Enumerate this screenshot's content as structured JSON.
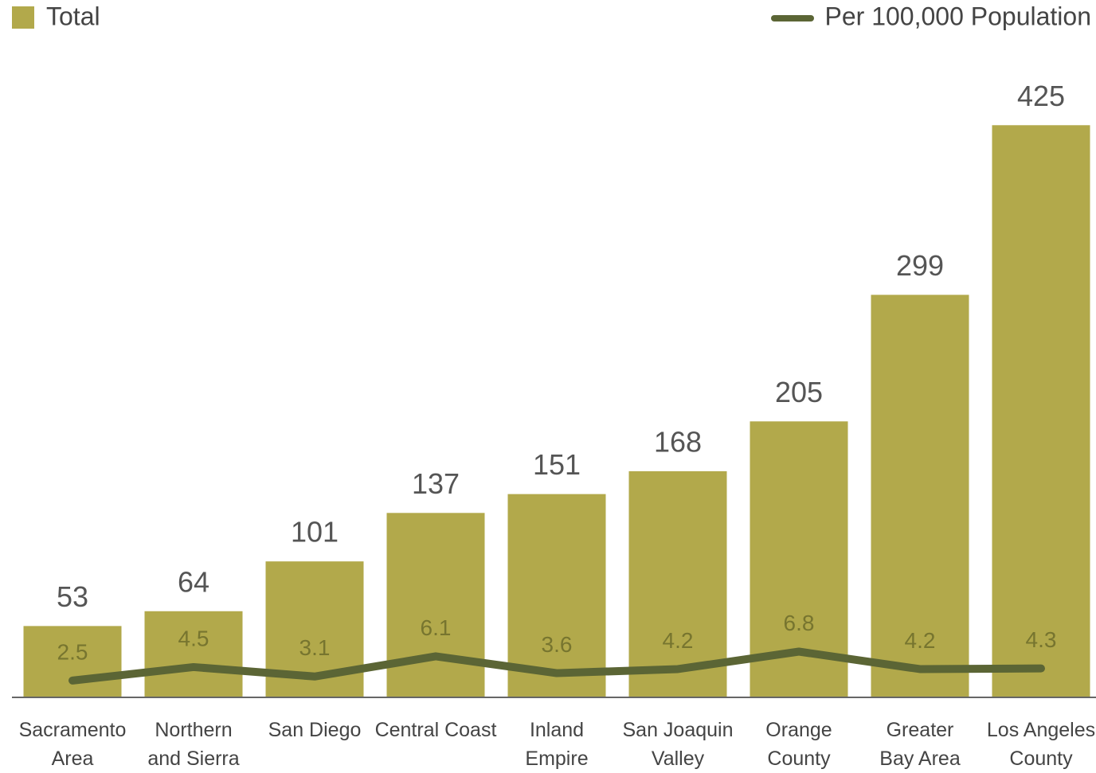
{
  "chart_data": {
    "type": "bar",
    "categories": [
      "Sacramento\nArea",
      "Northern\nand Sierra",
      "San Diego",
      "Central Coast",
      "Inland\nEmpire",
      "San Joaquin\nValley",
      "Orange\nCounty",
      "Greater\nBay Area",
      "Los Angeles\nCounty"
    ],
    "series": [
      {
        "name": "Total",
        "type": "bar",
        "color": "#b2a94b",
        "values": [
          53,
          64,
          101,
          137,
          151,
          168,
          205,
          299,
          425
        ]
      },
      {
        "name": "Per 100,000 Population",
        "type": "line",
        "axis": "y2",
        "color": "#5b6535",
        "values": [
          2.5,
          4.5,
          3.1,
          6.1,
          3.6,
          4.2,
          6.8,
          4.2,
          4.3
        ]
      }
    ],
    "ylim": [
      0,
      450
    ],
    "y2lim": [
      0,
      90
    ]
  }
}
